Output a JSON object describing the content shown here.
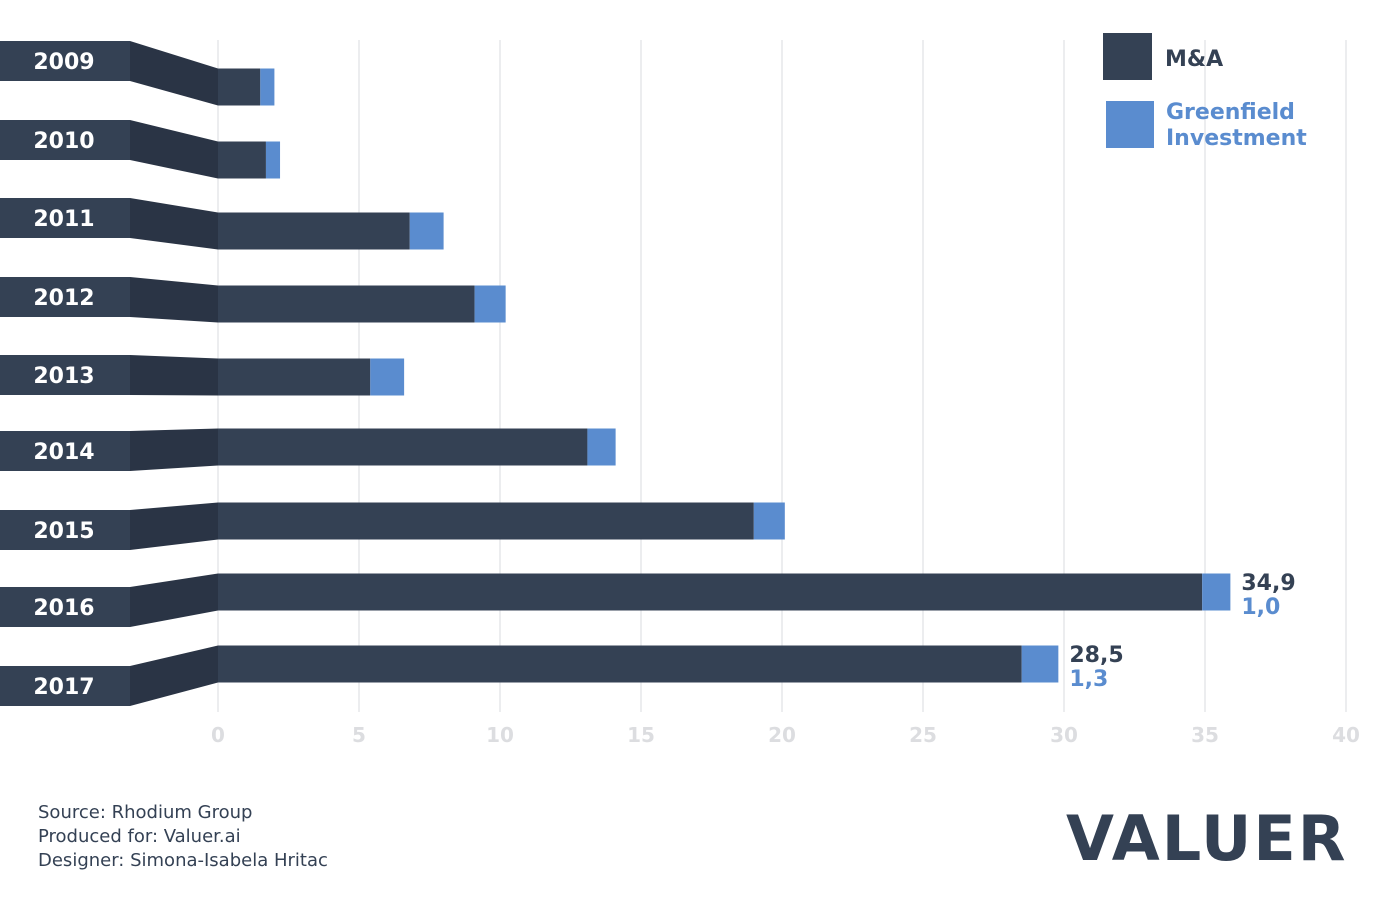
{
  "chart_data": {
    "type": "bar",
    "orientation": "horizontal",
    "stacked": true,
    "categories": [
      "2009",
      "2010",
      "2011",
      "2012",
      "2013",
      "2014",
      "2015",
      "2016",
      "2017"
    ],
    "series": [
      {
        "name": "M&A",
        "color": "#344154",
        "values": [
          1.5,
          1.7,
          6.8,
          9.1,
          5.4,
          13.1,
          19.0,
          34.9,
          28.5
        ]
      },
      {
        "name": "Greenfield Investment",
        "color": "#5a8ccf",
        "values": [
          0.5,
          0.5,
          1.2,
          1.1,
          1.2,
          1.0,
          1.1,
          1.0,
          1.3
        ]
      }
    ],
    "x_ticks": [
      "0",
      "5",
      "10",
      "15",
      "20",
      "25",
      "30",
      "35",
      "40"
    ],
    "xlim": [
      0,
      40
    ],
    "grid": true,
    "legend": {
      "position": "top-right",
      "items": [
        "M&A",
        "Greenfield Investment"
      ]
    },
    "data_labels": [
      {
        "category": "2016",
        "ma": "34,9",
        "greenfield": "1,0"
      },
      {
        "category": "2017",
        "ma": "28,5",
        "greenfield": "1,3"
      }
    ]
  },
  "credits": {
    "source": "Source: Rhodium Group",
    "produced": "Produced for: Valuer.ai",
    "designer": "Designer: Simona-Isabela Hritac"
  },
  "brand": {
    "logo_text": "VALUER",
    "logo_color": "#344154"
  }
}
